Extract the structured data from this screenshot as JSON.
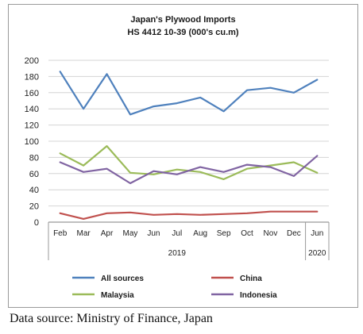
{
  "chart_data": {
    "type": "line",
    "title": "Japan's Plywood Imports",
    "subtitle": "HS 4412 10-39  (000's cu.m)",
    "categories": [
      "Feb",
      "Mar",
      "Apr",
      "May",
      "Jun",
      "Jul",
      "Aug",
      "Sep",
      "Oct",
      "Nov",
      "Dec",
      "Jun"
    ],
    "category_groups": [
      {
        "label": "2019",
        "start": 0,
        "end": 10
      },
      {
        "label": "2020",
        "start": 11,
        "end": 11
      }
    ],
    "ylim": [
      0,
      200
    ],
    "yticks": [
      0,
      20,
      40,
      60,
      80,
      100,
      120,
      140,
      160,
      180,
      200
    ],
    "grid": true,
    "legend_position": "bottom",
    "series": [
      {
        "name": "All sources",
        "color": "#4f81bd",
        "values": [
          186,
          140,
          183,
          133,
          143,
          147,
          154,
          137,
          163,
          166,
          160,
          176
        ]
      },
      {
        "name": "China",
        "color": "#c0504d",
        "values": [
          11,
          4,
          11,
          12,
          9,
          10,
          9,
          10,
          11,
          13,
          13,
          13
        ]
      },
      {
        "name": "Malaysia",
        "color": "#9bbb59",
        "values": [
          85,
          70,
          94,
          61,
          59,
          65,
          62,
          53,
          66,
          70,
          74,
          61
        ]
      },
      {
        "name": "Indonesia",
        "color": "#8064a2",
        "values": [
          74,
          62,
          66,
          48,
          63,
          59,
          68,
          62,
          71,
          68,
          57,
          82
        ]
      }
    ]
  },
  "footer": {
    "source": "Data source: Ministry of Finance, Japan"
  }
}
